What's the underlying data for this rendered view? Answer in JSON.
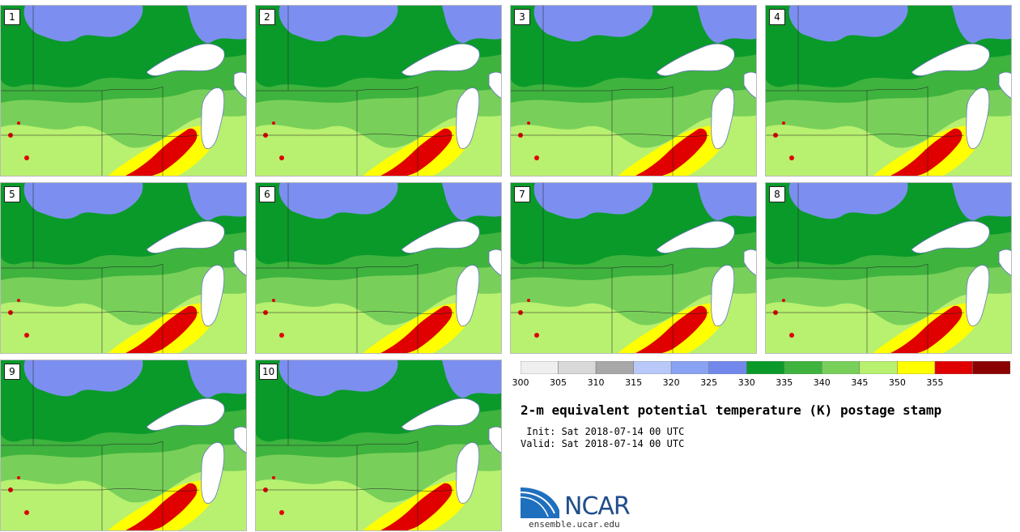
{
  "panels": [
    {
      "label": "1"
    },
    {
      "label": "2"
    },
    {
      "label": "3"
    },
    {
      "label": "4"
    },
    {
      "label": "5"
    },
    {
      "label": "6"
    },
    {
      "label": "7"
    },
    {
      "label": "8"
    },
    {
      "label": "9"
    },
    {
      "label": "10"
    }
  ],
  "colorbar": {
    "ticks": [
      "300",
      "305",
      "310",
      "315",
      "320",
      "325",
      "330",
      "335",
      "340",
      "345",
      "350",
      "355"
    ],
    "colors": [
      "#efefef",
      "#d9d9d9",
      "#a8a8a8",
      "#b8c8f8",
      "#8aa2f2",
      "#7288ec",
      "#0a9a2a",
      "#3eb33e",
      "#78d05a",
      "#b8f070",
      "#ffff00",
      "#e00000",
      "#8b0000"
    ]
  },
  "map_colors": {
    "k320_325": "#7c8ff0",
    "k330_335": "#0a9a2a",
    "k335_340": "#3eb33e",
    "k340_345": "#78d05a",
    "k345_350": "#b8f070",
    "k350_355": "#ffff00",
    "k355": "#e00000",
    "k360": "#a00000",
    "lake": "#ffffff"
  },
  "title": "2-m equivalent potential temperature (K) postage stamp",
  "init": " Init: Sat 2018-07-14 00 UTC",
  "valid": "Valid: Sat 2018-07-14 00 UTC",
  "logo": {
    "name": "NCAR",
    "url": "ensemble.ucar.edu"
  }
}
